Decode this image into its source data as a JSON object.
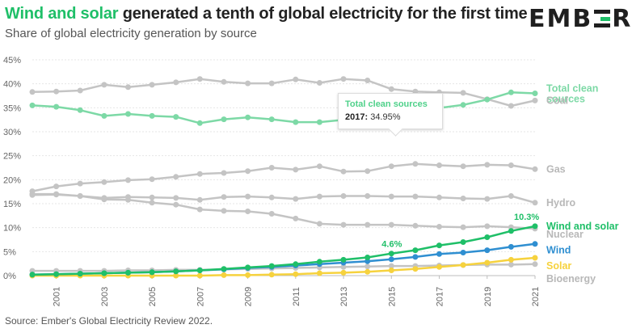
{
  "header": {
    "title_accent": "Wind and solar",
    "title_rest": " generated a tenth of global electricity for the first time",
    "subtitle": "Share of global electricity generation by source",
    "logo_text_left": "EMB",
    "logo_text_right": "R"
  },
  "source": "Source: Ember's Global Electricity Review 2022.",
  "tooltip": {
    "title": "Total clean sources",
    "year": "2017:",
    "value": " 34.95%"
  },
  "chart_data": {
    "type": "line",
    "x": [
      2000,
      2001,
      2002,
      2003,
      2004,
      2005,
      2006,
      2007,
      2008,
      2009,
      2010,
      2011,
      2012,
      2013,
      2014,
      2015,
      2016,
      2017,
      2018,
      2019,
      2020,
      2021
    ],
    "x_tick_labels": [
      "2001",
      "2003",
      "2005",
      "2007",
      "2009",
      "2011",
      "2013",
      "2015",
      "2017",
      "2019",
      "2021"
    ],
    "x_tick_values": [
      2001,
      2003,
      2005,
      2007,
      2009,
      2011,
      2013,
      2015,
      2017,
      2019,
      2021
    ],
    "ylim": [
      0,
      45
    ],
    "y_ticks": [
      0,
      5,
      10,
      15,
      20,
      25,
      30,
      35,
      40,
      45
    ],
    "y_tick_labels": [
      "0%",
      "5%",
      "10%",
      "15%",
      "20%",
      "25%",
      "30%",
      "35%",
      "40%",
      "45%"
    ],
    "grid": true,
    "series": [
      {
        "name": "Coal",
        "color": "#c4c4c4",
        "values": [
          38.3,
          38.4,
          38.6,
          39.8,
          39.3,
          39.8,
          40.3,
          41.0,
          40.4,
          40.1,
          40.1,
          40.9,
          40.2,
          41.0,
          40.7,
          38.9,
          38.4,
          38.2,
          38.1,
          36.8,
          35.4,
          36.5
        ]
      },
      {
        "name": "Gas",
        "color": "#c4c4c4",
        "values": [
          17.6,
          18.6,
          19.2,
          19.5,
          19.9,
          20.1,
          20.6,
          21.2,
          21.4,
          21.8,
          22.5,
          22.1,
          22.8,
          21.7,
          21.8,
          22.8,
          23.3,
          23.0,
          22.8,
          23.1,
          23.0,
          22.2
        ]
      },
      {
        "name": "Hydro",
        "color": "#c4c4c4",
        "values": [
          17.0,
          17.0,
          16.6,
          16.2,
          16.4,
          16.3,
          16.2,
          15.8,
          16.4,
          16.5,
          16.3,
          16.0,
          16.5,
          16.6,
          16.6,
          16.5,
          16.5,
          16.3,
          16.1,
          16.0,
          16.6,
          15.2
        ]
      },
      {
        "name": "Nuclear",
        "color": "#c4c4c4",
        "values": [
          16.8,
          16.9,
          16.6,
          15.9,
          15.8,
          15.2,
          14.8,
          13.8,
          13.5,
          13.4,
          12.9,
          11.9,
          10.8,
          10.6,
          10.6,
          10.6,
          10.4,
          10.2,
          10.1,
          10.3,
          10.1,
          9.8
        ]
      },
      {
        "name": "Total clean sources",
        "color": "#7dd9a6",
        "values": [
          35.5,
          35.2,
          34.5,
          33.3,
          33.7,
          33.3,
          33.1,
          31.8,
          32.6,
          33.0,
          32.6,
          32.0,
          32.0,
          32.5,
          33.3,
          33.8,
          34.1,
          34.95,
          35.6,
          36.7,
          38.2,
          38.0
        ]
      },
      {
        "name": "Bioenergy",
        "color": "#c4c4c4",
        "values": [
          1.0,
          1.0,
          1.0,
          1.0,
          1.1,
          1.1,
          1.2,
          1.2,
          1.3,
          1.4,
          1.5,
          1.6,
          1.7,
          1.8,
          1.9,
          2.0,
          2.0,
          2.1,
          2.2,
          2.3,
          2.3,
          2.4
        ]
      },
      {
        "name": "Solar",
        "color": "#f6d23e",
        "values": [
          0.0,
          0.0,
          0.0,
          0.0,
          0.0,
          0.0,
          0.0,
          0.0,
          0.1,
          0.1,
          0.2,
          0.3,
          0.5,
          0.6,
          0.8,
          1.1,
          1.4,
          1.8,
          2.2,
          2.7,
          3.3,
          3.7
        ]
      },
      {
        "name": "Wind",
        "color": "#2f8fd1",
        "values": [
          0.2,
          0.3,
          0.4,
          0.5,
          0.6,
          0.7,
          0.9,
          1.1,
          1.3,
          1.6,
          1.8,
          2.1,
          2.4,
          2.7,
          3.0,
          3.4,
          3.9,
          4.5,
          4.8,
          5.3,
          6.0,
          6.6
        ]
      },
      {
        "name": "Wind and solar",
        "color": "#1fbf68",
        "values": [
          0.2,
          0.3,
          0.4,
          0.5,
          0.6,
          0.7,
          0.9,
          1.1,
          1.4,
          1.7,
          2.0,
          2.4,
          2.9,
          3.3,
          3.8,
          4.6,
          5.3,
          6.3,
          7.0,
          8.0,
          9.3,
          10.3
        ]
      }
    ],
    "end_labels": [
      {
        "lines": [
          "Total clean",
          "sources"
        ],
        "color": "#7dd9a6",
        "value": 38.0
      },
      {
        "lines": [
          "Coal"
        ],
        "color": "#b8b8b8",
        "value": 36.5
      },
      {
        "lines": [
          "Gas"
        ],
        "color": "#b8b8b8",
        "value": 22.2
      },
      {
        "lines": [
          "Hydro"
        ],
        "color": "#b8b8b8",
        "value": 15.2
      },
      {
        "lines": [
          "Wind and solar"
        ],
        "color": "#1fbf68",
        "value": 10.3
      },
      {
        "lines": [
          "Nuclear"
        ],
        "color": "#b8b8b8",
        "value": 8.6
      },
      {
        "lines": [
          "Wind"
        ],
        "color": "#2f8fd1",
        "value": 5.3
      },
      {
        "lines": [
          "Solar"
        ],
        "color": "#f6d23e",
        "value": 2.0
      },
      {
        "lines": [
          "Bioenergy"
        ],
        "color": "#b8b8b8",
        "value": -0.7
      }
    ],
    "annotations": [
      {
        "text": "4.6%",
        "color": "#1fbf68",
        "x": 2015,
        "y": 4.6
      },
      {
        "text": "10.3%",
        "color": "#1fbf68",
        "x": 2021,
        "y": 10.3
      }
    ],
    "highlight_point": {
      "series": "Total clean sources",
      "x": 2017,
      "y": 34.95
    }
  }
}
